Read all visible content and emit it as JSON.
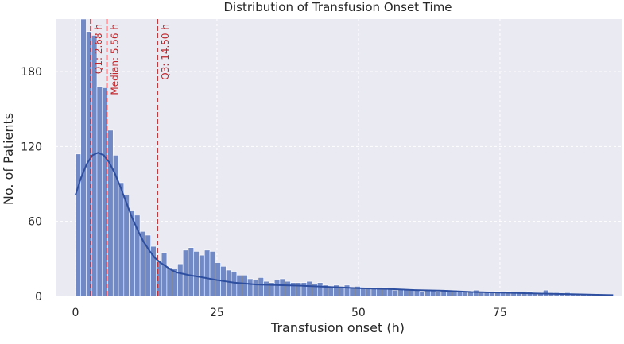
{
  "chart_data": {
    "type": "bar",
    "title": "Distribution of Transfusion Onset Time",
    "xlabel": "Transfusion onset (h)",
    "ylabel": "No. of Patients",
    "xlim": [
      -3.5,
      96.5
    ],
    "ylim": [
      0,
      222
    ],
    "x_ticks": [
      0,
      25,
      50,
      75
    ],
    "y_ticks": [
      0,
      60,
      120,
      180
    ],
    "grid": true,
    "bin_width": 0.95,
    "bin_start": 0,
    "bins": [
      {
        "x": 0.0,
        "count": 114
      },
      {
        "x": 0.95,
        "count": 223
      },
      {
        "x": 1.9,
        "count": 212
      },
      {
        "x": 2.85,
        "count": 209
      },
      {
        "x": 3.8,
        "count": 168
      },
      {
        "x": 4.75,
        "count": 167
      },
      {
        "x": 5.7,
        "count": 133
      },
      {
        "x": 6.65,
        "count": 113
      },
      {
        "x": 7.6,
        "count": 91
      },
      {
        "x": 8.55,
        "count": 81
      },
      {
        "x": 9.5,
        "count": 69
      },
      {
        "x": 10.45,
        "count": 65
      },
      {
        "x": 11.4,
        "count": 52
      },
      {
        "x": 12.35,
        "count": 49
      },
      {
        "x": 13.3,
        "count": 40
      },
      {
        "x": 14.25,
        "count": 28
      },
      {
        "x": 15.2,
        "count": 35
      },
      {
        "x": 16.15,
        "count": 23
      },
      {
        "x": 17.1,
        "count": 22
      },
      {
        "x": 18.05,
        "count": 26
      },
      {
        "x": 19.0,
        "count": 37
      },
      {
        "x": 19.95,
        "count": 39
      },
      {
        "x": 20.9,
        "count": 36
      },
      {
        "x": 21.85,
        "count": 33
      },
      {
        "x": 22.8,
        "count": 37
      },
      {
        "x": 23.75,
        "count": 36
      },
      {
        "x": 24.7,
        "count": 27
      },
      {
        "x": 25.65,
        "count": 24
      },
      {
        "x": 26.6,
        "count": 21
      },
      {
        "x": 27.55,
        "count": 20
      },
      {
        "x": 28.5,
        "count": 17
      },
      {
        "x": 29.45,
        "count": 17
      },
      {
        "x": 30.4,
        "count": 14
      },
      {
        "x": 31.35,
        "count": 13
      },
      {
        "x": 32.3,
        "count": 15
      },
      {
        "x": 33.25,
        "count": 12
      },
      {
        "x": 34.2,
        "count": 11
      },
      {
        "x": 35.15,
        "count": 13
      },
      {
        "x": 36.1,
        "count": 14
      },
      {
        "x": 37.05,
        "count": 12
      },
      {
        "x": 38.0,
        "count": 11
      },
      {
        "x": 38.95,
        "count": 11
      },
      {
        "x": 39.9,
        "count": 11
      },
      {
        "x": 40.85,
        "count": 12
      },
      {
        "x": 41.8,
        "count": 10
      },
      {
        "x": 42.75,
        "count": 11
      },
      {
        "x": 43.7,
        "count": 9
      },
      {
        "x": 44.65,
        "count": 8
      },
      {
        "x": 45.6,
        "count": 9
      },
      {
        "x": 46.55,
        "count": 8
      },
      {
        "x": 47.5,
        "count": 9
      },
      {
        "x": 48.45,
        "count": 7
      },
      {
        "x": 49.4,
        "count": 8
      },
      {
        "x": 50.35,
        "count": 7
      },
      {
        "x": 51.3,
        "count": 6
      },
      {
        "x": 52.25,
        "count": 7
      },
      {
        "x": 53.2,
        "count": 6
      },
      {
        "x": 54.15,
        "count": 7
      },
      {
        "x": 55.1,
        "count": 6
      },
      {
        "x": 56.05,
        "count": 5
      },
      {
        "x": 57.0,
        "count": 6
      },
      {
        "x": 57.95,
        "count": 5
      },
      {
        "x": 58.9,
        "count": 6
      },
      {
        "x": 59.85,
        "count": 5
      },
      {
        "x": 60.8,
        "count": 4
      },
      {
        "x": 61.75,
        "count": 5
      },
      {
        "x": 62.7,
        "count": 5
      },
      {
        "x": 63.65,
        "count": 4
      },
      {
        "x": 64.6,
        "count": 5
      },
      {
        "x": 65.55,
        "count": 4
      },
      {
        "x": 66.5,
        "count": 5
      },
      {
        "x": 67.45,
        "count": 4
      },
      {
        "x": 68.4,
        "count": 4
      },
      {
        "x": 69.35,
        "count": 4
      },
      {
        "x": 70.3,
        "count": 5
      },
      {
        "x": 71.25,
        "count": 3
      },
      {
        "x": 72.2,
        "count": 4
      },
      {
        "x": 73.15,
        "count": 3
      },
      {
        "x": 74.1,
        "count": 4
      },
      {
        "x": 75.05,
        "count": 3
      },
      {
        "x": 76.0,
        "count": 4
      },
      {
        "x": 76.95,
        "count": 3
      },
      {
        "x": 77.9,
        "count": 3
      },
      {
        "x": 78.85,
        "count": 3
      },
      {
        "x": 79.8,
        "count": 4
      },
      {
        "x": 80.75,
        "count": 3
      },
      {
        "x": 81.7,
        "count": 3
      },
      {
        "x": 82.65,
        "count": 5
      },
      {
        "x": 83.6,
        "count": 3
      },
      {
        "x": 84.55,
        "count": 3
      },
      {
        "x": 85.5,
        "count": 2
      },
      {
        "x": 86.45,
        "count": 3
      },
      {
        "x": 87.4,
        "count": 2
      },
      {
        "x": 88.35,
        "count": 2
      },
      {
        "x": 89.3,
        "count": 2
      },
      {
        "x": 90.25,
        "count": 2
      },
      {
        "x": 91.2,
        "count": 2
      }
    ],
    "kde": {
      "name": "",
      "x": [
        0,
        1,
        2,
        3,
        4,
        5,
        6,
        7,
        8,
        9,
        10,
        11,
        12,
        13,
        14,
        15,
        16,
        17,
        18,
        20,
        22,
        25,
        28,
        32,
        36,
        40,
        45,
        50,
        55,
        60,
        65,
        70,
        75,
        80,
        85,
        90,
        95
      ],
      "y": [
        81,
        95,
        106,
        113,
        115,
        113,
        107,
        98,
        87,
        75,
        63,
        53,
        44,
        37,
        31,
        27,
        24,
        21,
        19,
        17,
        15.5,
        13,
        11,
        9.5,
        9,
        8.5,
        7.5,
        6.5,
        6,
        5,
        4.5,
        3.5,
        3,
        2.5,
        2,
        1.5,
        1
      ]
    },
    "reference_lines": [
      {
        "x": 2.68,
        "label": "Q1: 2.68 h"
      },
      {
        "x": 5.56,
        "label": "Median: 5.56 h"
      },
      {
        "x": 14.5,
        "label": "Q3: 14.50 h"
      }
    ],
    "colors": {
      "background": "#eaeaf2",
      "grid": "#ffffff",
      "bar": "#7189c4",
      "kde": "#2e4fa0",
      "reference": "#c0282d",
      "text": "#262626"
    }
  }
}
